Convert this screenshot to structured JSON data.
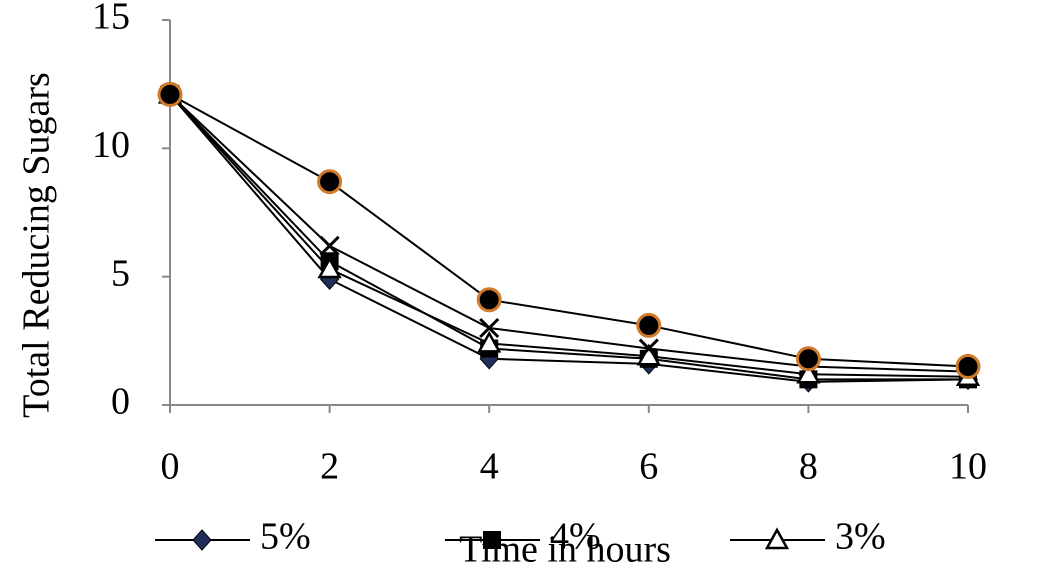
{
  "chart_data": {
    "type": "line",
    "x_label": "Time in hours",
    "y_label": "Total Reducing Sugars",
    "x": [
      0,
      2,
      4,
      6,
      8,
      10
    ],
    "xlim": [
      0,
      10
    ],
    "xticks": [
      0,
      2,
      4,
      6,
      8,
      10
    ],
    "ylim": [
      0,
      15
    ],
    "yticks": [
      0,
      5,
      10,
      15
    ],
    "legend": "bottom",
    "series": [
      {
        "name": "5%",
        "color": "#000000",
        "marker": "diamond",
        "marker_color": "#1f2f5a",
        "values": [
          12.1,
          4.9,
          1.8,
          1.6,
          0.9,
          1.0
        ]
      },
      {
        "name": "4%",
        "color": "#000000",
        "marker": "square",
        "marker_color": "#000000",
        "values": [
          12.1,
          5.6,
          2.2,
          1.8,
          1.0,
          1.0
        ]
      },
      {
        "name": "3%",
        "color": "#000000",
        "marker": "triangle",
        "marker_color": "#ffffff",
        "values": [
          12.1,
          5.3,
          2.4,
          1.9,
          1.2,
          1.1
        ]
      },
      {
        "color": "#000000",
        "marker": "x",
        "marker_color": "#000000",
        "values": [
          12.1,
          6.2,
          3.0,
          2.2,
          1.5,
          1.3
        ]
      },
      {
        "color": "#000000",
        "marker": "circle",
        "marker_color": "#000000",
        "values": [
          12.1,
          8.7,
          4.1,
          3.1,
          1.8,
          1.5
        ]
      }
    ]
  }
}
